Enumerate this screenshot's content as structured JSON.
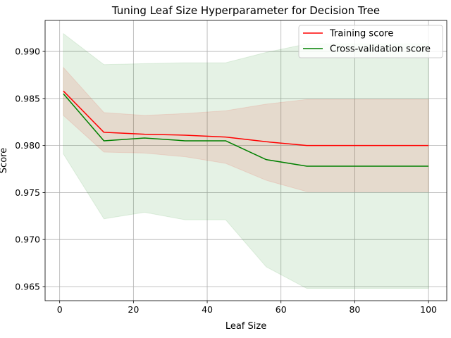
{
  "chart_data": {
    "type": "line",
    "title": "Tuning Leaf Size Hyperparameter for Decision Tree",
    "xlabel": "Leaf Size",
    "ylabel": "Score",
    "x": [
      1,
      12,
      23,
      34,
      45,
      56,
      67,
      78,
      89,
      100
    ],
    "xlim": [
      -3.95,
      104.95
    ],
    "ylim": [
      0.9635,
      0.9933
    ],
    "xticks": [
      0,
      20,
      40,
      60,
      80,
      100
    ],
    "yticks": [
      0.965,
      0.97,
      0.975,
      0.98,
      0.985,
      0.99
    ],
    "ytick_labels": [
      "0.965",
      "0.970",
      "0.975",
      "0.980",
      "0.985",
      "0.990"
    ],
    "grid": true,
    "legend_position": "top-right",
    "series": [
      {
        "name": "Training score",
        "color": "#ff0000",
        "band_color": "#ff0000",
        "values": [
          0.9858,
          0.9814,
          0.9812,
          0.9811,
          0.9809,
          0.9804,
          0.98,
          0.98,
          0.98,
          0.98
        ],
        "band_lower": [
          0.9832,
          0.9793,
          0.9792,
          0.9788,
          0.9781,
          0.9763,
          0.9751,
          0.9751,
          0.9751,
          0.9751
        ],
        "band_upper": [
          0.9883,
          0.9835,
          0.9832,
          0.9834,
          0.9837,
          0.9844,
          0.9849,
          0.9849,
          0.9849,
          0.9849
        ]
      },
      {
        "name": "Cross-validation score",
        "color": "#008000",
        "band_color": "#008000",
        "values": [
          0.9855,
          0.9805,
          0.9808,
          0.9805,
          0.9805,
          0.9785,
          0.9778,
          0.9778,
          0.9778,
          0.9778
        ],
        "band_lower": [
          0.9791,
          0.9722,
          0.9729,
          0.9721,
          0.9721,
          0.9671,
          0.9648,
          0.9648,
          0.9648,
          0.9648
        ],
        "band_upper": [
          0.9919,
          0.9886,
          0.9887,
          0.9888,
          0.9888,
          0.9899,
          0.9908,
          0.9908,
          0.9908,
          0.9908
        ]
      }
    ]
  }
}
